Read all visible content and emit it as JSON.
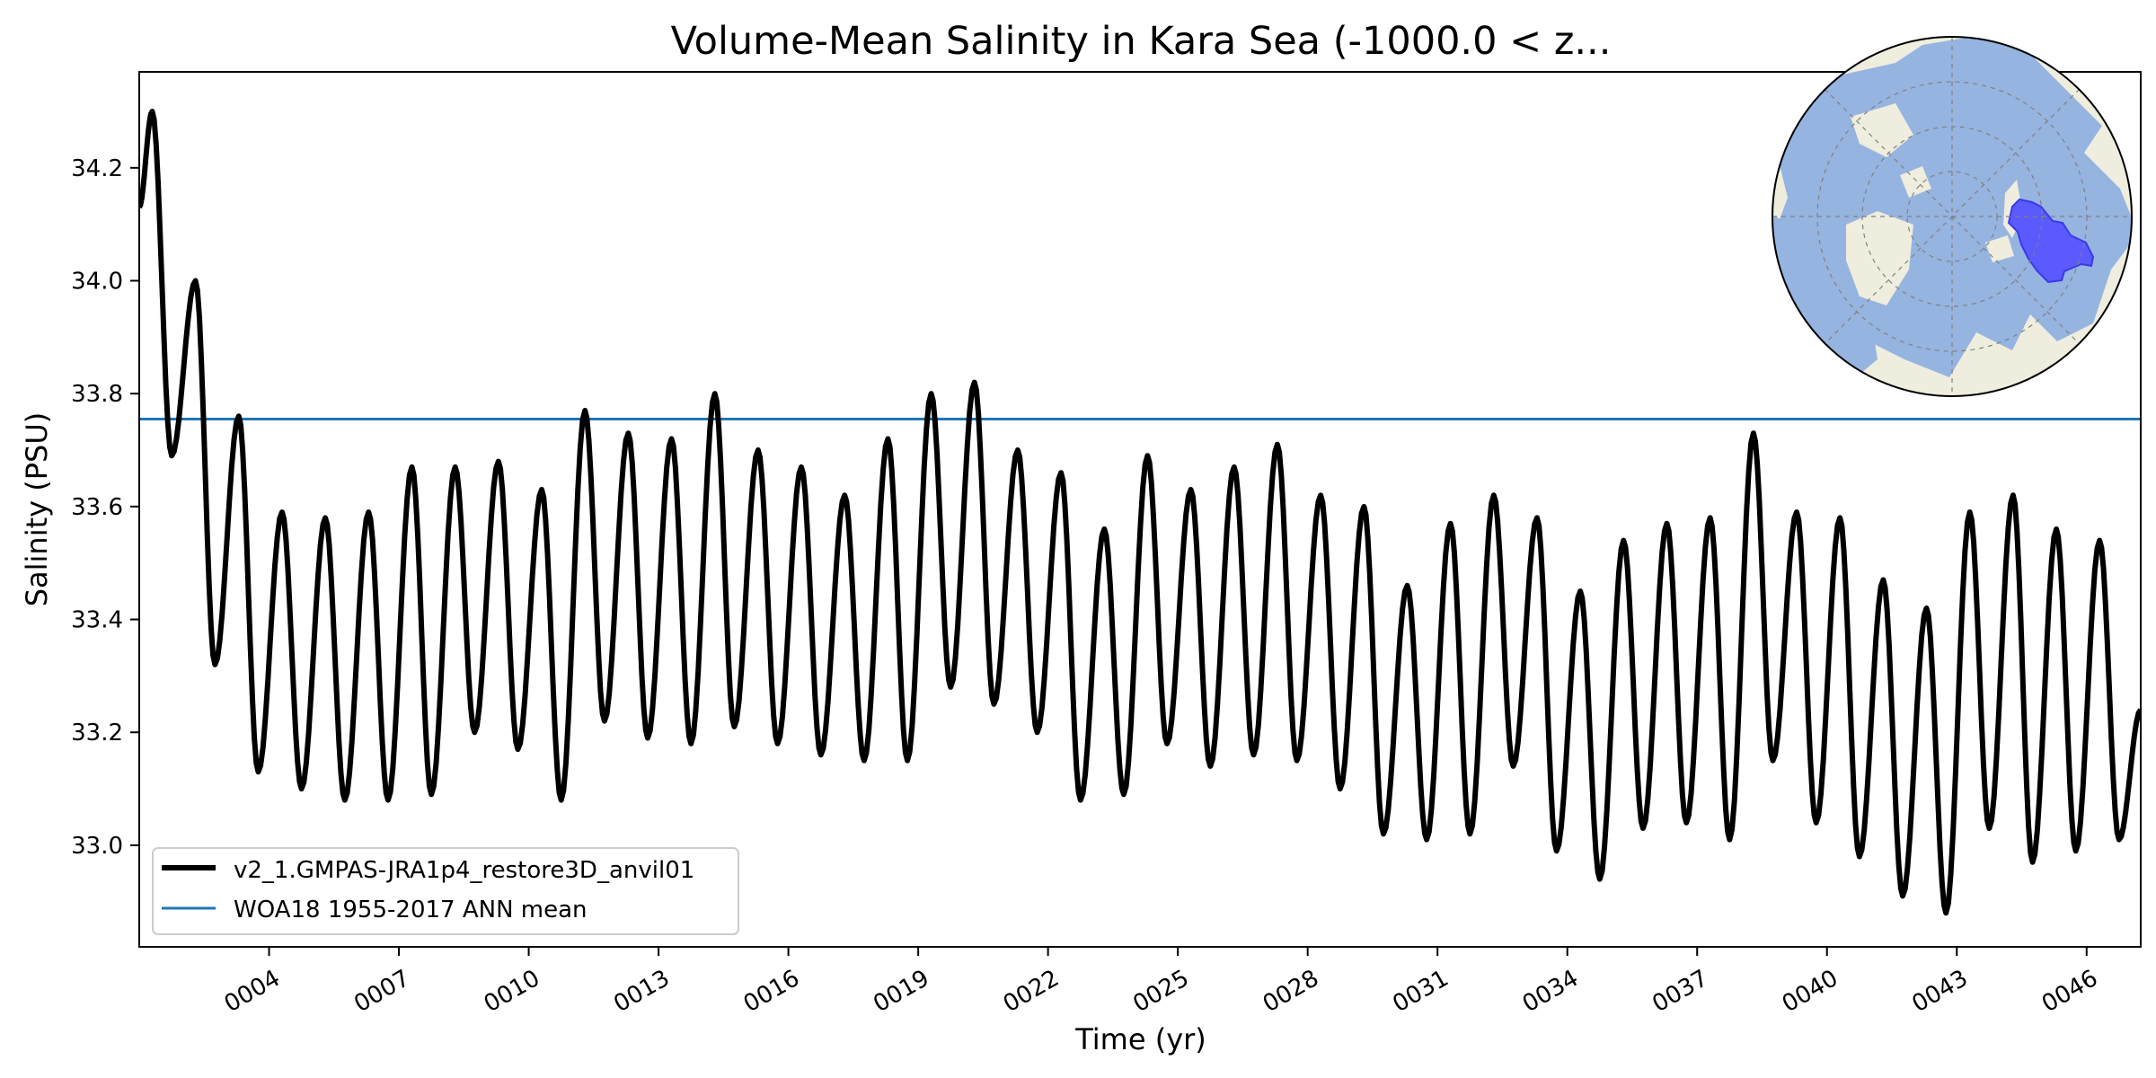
{
  "chart_data": {
    "type": "line",
    "title": "Volume-Mean Salinity in Kara Sea (-1000.0 < z...",
    "xlabel": "Time (yr)",
    "ylabel": "Salinity (PSU)",
    "xlim": [
      1.0,
      47.25
    ],
    "ylim": [
      32.82,
      34.37
    ],
    "xticks": [
      4,
      7,
      10,
      13,
      16,
      19,
      22,
      25,
      28,
      31,
      34,
      37,
      40,
      43,
      46
    ],
    "xtick_labels": [
      "0004",
      "0007",
      "0010",
      "0013",
      "0016",
      "0019",
      "0022",
      "0025",
      "0028",
      "0031",
      "0034",
      "0037",
      "0040",
      "0043",
      "0046"
    ],
    "yticks": [
      33.0,
      33.2,
      33.4,
      33.6,
      33.8,
      34.0,
      34.2
    ],
    "ytick_labels": [
      "33.0",
      "33.2",
      "33.4",
      "33.6",
      "33.8",
      "34.0",
      "34.2"
    ],
    "legend_position": "lower-left",
    "series": [
      {
        "name": "v2_1.GMPAS-JRA1p4_restore3D_anvil01",
        "color": "#000000",
        "style": "monthly seasonal cycle",
        "annual_max": [
          34.3,
          34.0,
          33.76,
          33.59,
          33.58,
          33.59,
          33.67,
          33.67,
          33.68,
          33.63,
          33.77,
          33.73,
          33.72,
          33.8,
          33.7,
          33.67,
          33.62,
          33.72,
          33.8,
          33.82,
          33.7,
          33.66,
          33.56,
          33.69,
          33.63,
          33.67,
          33.71,
          33.62,
          33.6,
          33.46,
          33.57,
          33.62,
          33.58,
          33.45,
          33.54,
          33.57,
          33.58,
          33.73,
          33.59,
          33.58,
          33.47,
          33.42,
          33.59,
          33.62,
          33.56,
          33.54
        ],
        "annual_min": [
          33.69,
          33.32,
          33.13,
          33.1,
          33.08,
          33.08,
          33.09,
          33.2,
          33.17,
          33.08,
          33.22,
          33.19,
          33.18,
          33.21,
          33.18,
          33.16,
          33.15,
          33.15,
          33.28,
          33.25,
          33.2,
          33.08,
          33.09,
          33.18,
          33.14,
          33.16,
          33.15,
          33.1,
          33.02,
          33.01,
          33.02,
          33.14,
          32.99,
          32.94,
          33.03,
          33.04,
          33.01,
          33.15,
          33.04,
          32.98,
          32.91,
          32.88,
          33.03,
          32.97,
          32.99,
          33.01
        ],
        "start_value": 34.13,
        "end_value": 33.24
      },
      {
        "name": "WOA18 1955-2017 ANN mean",
        "color": "#1f77b4",
        "value": 33.755
      }
    ],
    "inset_map": {
      "type": "north-polar stereographic map",
      "ocean_color": "#96b4e0",
      "land_color": "#efedde",
      "region_color": "#5a5aff",
      "region": "Kara Sea"
    }
  }
}
